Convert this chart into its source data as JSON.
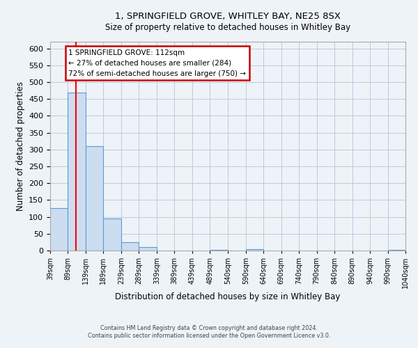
{
  "title_line1": "1, SPRINGFIELD GROVE, WHITLEY BAY, NE25 8SX",
  "title_line2": "Size of property relative to detached houses in Whitley Bay",
  "xlabel": "Distribution of detached houses by size in Whitley Bay",
  "ylabel": "Number of detached properties",
  "bar_color": "#ccddf0",
  "bar_edge_color": "#5b9bd5",
  "grid_color": "#b8ccdc",
  "background_color": "#eef3f8",
  "red_line_x": 112,
  "annotation_title": "1 SPRINGFIELD GROVE: 112sqm",
  "annotation_line2": "← 27% of detached houses are smaller (284)",
  "annotation_line3": "72% of semi-detached houses are larger (750) →",
  "annotation_box_fill": "#ffffff",
  "annotation_box_edge": "#cc0000",
  "ylim": [
    0,
    620
  ],
  "yticks": [
    0,
    50,
    100,
    150,
    200,
    250,
    300,
    350,
    400,
    450,
    500,
    550,
    600
  ],
  "bin_edges": [
    39,
    89,
    139,
    189,
    239,
    289,
    339,
    389,
    439,
    489,
    540,
    590,
    640,
    690,
    740,
    790,
    840,
    890,
    940,
    990,
    1040
  ],
  "bar_heights": [
    127,
    470,
    310,
    95,
    25,
    10,
    0,
    0,
    0,
    3,
    0,
    5,
    0,
    0,
    0,
    0,
    0,
    0,
    0,
    3
  ],
  "footnote_line1": "Contains HM Land Registry data © Crown copyright and database right 2024.",
  "footnote_line2": "Contains public sector information licensed under the Open Government Licence v3.0."
}
